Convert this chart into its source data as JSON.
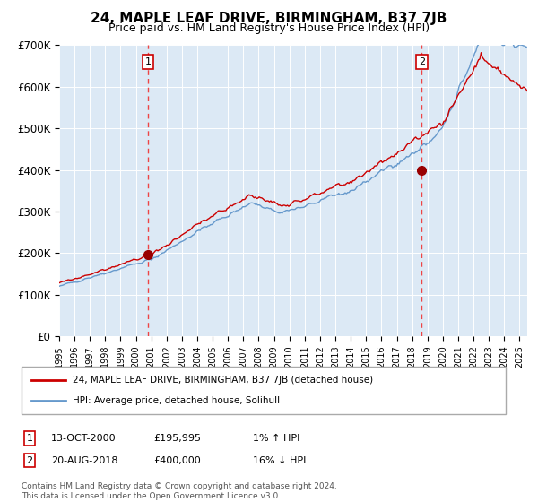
{
  "title": "24, MAPLE LEAF DRIVE, BIRMINGHAM, B37 7JB",
  "subtitle": "Price paid vs. HM Land Registry's House Price Index (HPI)",
  "ylabel_ticks": [
    "£0",
    "£100K",
    "£200K",
    "£300K",
    "£400K",
    "£500K",
    "£600K",
    "£700K"
  ],
  "ylim": [
    0,
    700000
  ],
  "xlim_start": 1995.0,
  "xlim_end": 2025.5,
  "background_color": "#dce9f5",
  "grid_color": "#ffffff",
  "sale1_x": 2000.79,
  "sale1_y": 195995,
  "sale1_label": "1",
  "sale1_date": "13-OCT-2000",
  "sale1_price": "£195,995",
  "sale1_hpi": "1% ↑ HPI",
  "sale2_x": 2018.63,
  "sale2_y": 400000,
  "sale2_label": "2",
  "sale2_date": "20-AUG-2018",
  "sale2_price": "£400,000",
  "sale2_hpi": "16% ↓ HPI",
  "line_red_color": "#cc0000",
  "line_blue_color": "#6699cc",
  "marker_red_color": "#990000",
  "vline_color": "#ee4444",
  "legend_label_red": "24, MAPLE LEAF DRIVE, BIRMINGHAM, B37 7JB (detached house)",
  "legend_label_blue": "HPI: Average price, detached house, Solihull",
  "footnote1": "Contains HM Land Registry data © Crown copyright and database right 2024.",
  "footnote2": "This data is licensed under the Open Government Licence v3.0.",
  "title_fontsize": 11,
  "subtitle_fontsize": 9
}
